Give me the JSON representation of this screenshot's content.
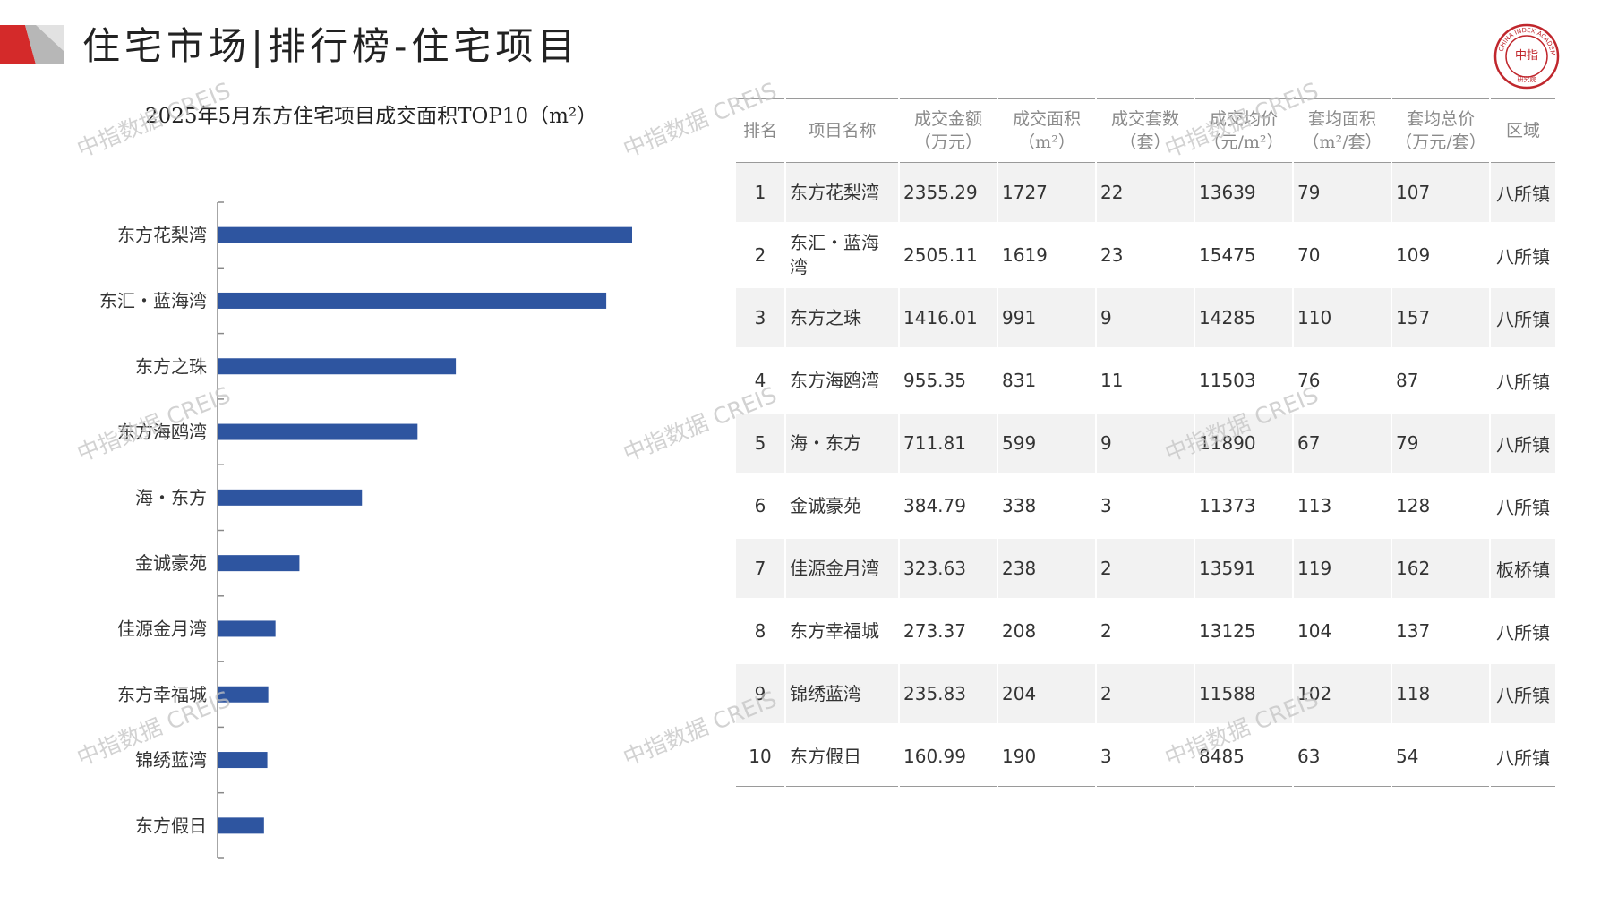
{
  "header": {
    "title": "住宅市场|排行榜-住宅项目"
  },
  "logo": {
    "text_top": "CHINA INDEX ACADEMY",
    "center": "中指",
    "bottom": "研究院"
  },
  "watermark": "中指数据 CREIS",
  "colors": {
    "bar": "#2e55a0",
    "accent_red": "#d42a2a",
    "accent_gray": "#b7b7b7",
    "logo": "#c0272d"
  },
  "chart_data": {
    "type": "bar",
    "orientation": "horizontal",
    "title": "2025年5月东方住宅项目成交面积TOP10（m²）",
    "categories": [
      "东方花梨湾",
      "东汇・蓝海湾",
      "东方之珠",
      "东方海鸥湾",
      "海・东方",
      "金诚豪苑",
      "佳源金月湾",
      "东方幸福城",
      "锦绣蓝湾",
      "东方假日"
    ],
    "values": [
      1727,
      1619,
      991,
      831,
      599,
      338,
      238,
      208,
      204,
      190
    ],
    "xlim": [
      0,
      1727
    ],
    "grid": false,
    "legend": "none"
  },
  "table": {
    "headers": [
      {
        "line1": "排名",
        "line2": ""
      },
      {
        "line1": "项目名称",
        "line2": ""
      },
      {
        "line1": "成交金额",
        "line2": "（万元）"
      },
      {
        "line1": "成交面积",
        "line2": "（m²）"
      },
      {
        "line1": "成交套数",
        "line2": "（套）"
      },
      {
        "line1": "成交均价",
        "line2": "（元/m²）"
      },
      {
        "line1": "套均面积",
        "line2": "（m²/套）"
      },
      {
        "line1": "套均总价",
        "line2": "（万元/套）"
      },
      {
        "line1": "区域",
        "line2": ""
      }
    ],
    "rows": [
      [
        "1",
        "东方花梨湾",
        "2355.29",
        "1727",
        "22",
        "13639",
        "79",
        "107",
        "八所镇"
      ],
      [
        "2",
        "东汇・蓝海湾",
        "2505.11",
        "1619",
        "23",
        "15475",
        "70",
        "109",
        "八所镇"
      ],
      [
        "3",
        "东方之珠",
        "1416.01",
        "991",
        "9",
        "14285",
        "110",
        "157",
        "八所镇"
      ],
      [
        "4",
        "东方海鸥湾",
        "955.35",
        "831",
        "11",
        "11503",
        "76",
        "87",
        "八所镇"
      ],
      [
        "5",
        "海・东方",
        "711.81",
        "599",
        "9",
        "11890",
        "67",
        "79",
        "八所镇"
      ],
      [
        "6",
        "金诚豪苑",
        "384.79",
        "338",
        "3",
        "11373",
        "113",
        "128",
        "八所镇"
      ],
      [
        "7",
        "佳源金月湾",
        "323.63",
        "238",
        "2",
        "13591",
        "119",
        "162",
        "板桥镇"
      ],
      [
        "8",
        "东方幸福城",
        "273.37",
        "208",
        "2",
        "13125",
        "104",
        "137",
        "八所镇"
      ],
      [
        "9",
        "锦绣蓝湾",
        "235.83",
        "204",
        "2",
        "11588",
        "102",
        "118",
        "八所镇"
      ],
      [
        "10",
        "东方假日",
        "160.99",
        "190",
        "3",
        "8485",
        "63",
        "54",
        "八所镇"
      ]
    ]
  }
}
